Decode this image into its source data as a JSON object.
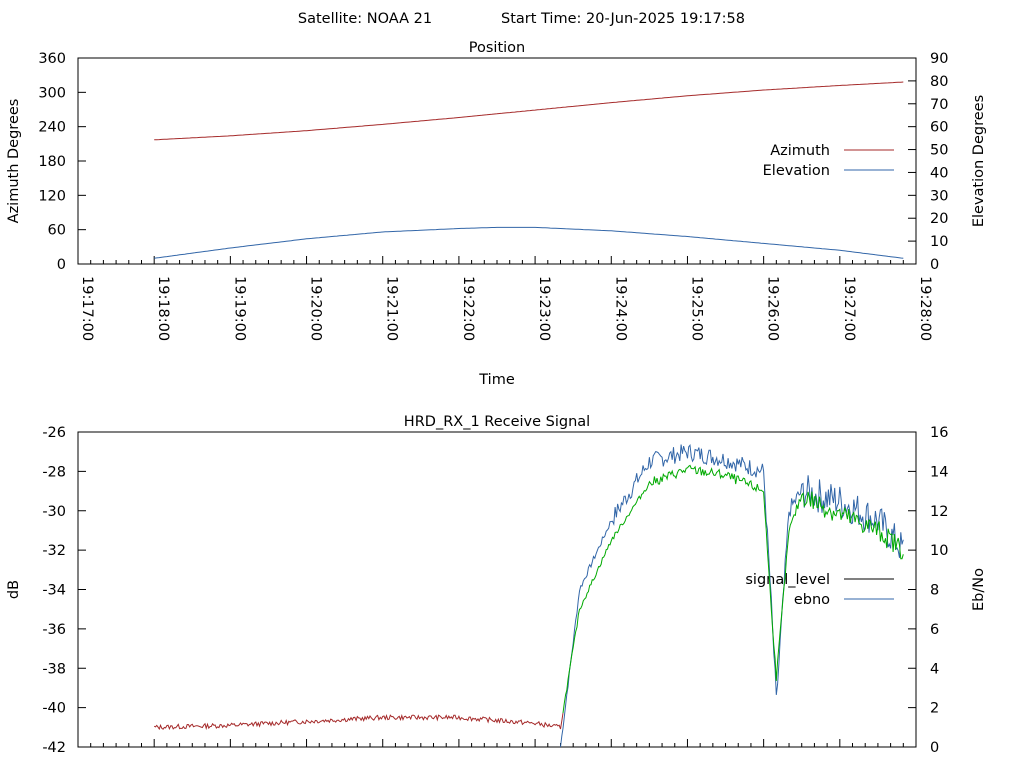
{
  "header": {
    "satellite_label": "Satellite: NOAA 21",
    "start_label": "Start Time: 20-Jun-2025 19:17:58"
  },
  "colors": {
    "azimuth": "#a52a2a",
    "elevation": "#3266a8",
    "signal_level_legend": "#000000",
    "signal_low": "#a52a2a",
    "signal_high": "#00aa00",
    "ebno": "#3266a8"
  },
  "chart_data": [
    {
      "type": "line",
      "title": "Position",
      "xlabel": "Time",
      "ylabel": "Azimuth Degrees",
      "y2label": "Elevation Degrees",
      "xlim": [
        "19:17:00",
        "19:28:00"
      ],
      "x_ticks": [
        "19:17:00",
        "19:18:00",
        "19:19:00",
        "19:20:00",
        "19:21:00",
        "19:22:00",
        "19:23:00",
        "19:24:00",
        "19:25:00",
        "19:26:00",
        "19:27:00",
        "19:28:00"
      ],
      "ylim": [
        0,
        360
      ],
      "y_ticks": [
        "0",
        "60",
        "120",
        "180",
        "240",
        "300",
        "360"
      ],
      "y2lim": [
        0,
        90
      ],
      "y2_ticks": [
        "0",
        "10",
        "20",
        "30",
        "40",
        "50",
        "60",
        "70",
        "80",
        "90"
      ],
      "legend_position": "right",
      "series": [
        {
          "name": "Azimuth",
          "axis": "y",
          "x": [
            "19:18:00",
            "19:19:00",
            "19:20:00",
            "19:21:00",
            "19:22:00",
            "19:23:00",
            "19:24:00",
            "19:25:00",
            "19:26:00",
            "19:27:00",
            "19:27:50"
          ],
          "values": [
            217,
            224,
            233,
            244,
            256,
            269,
            282,
            294,
            304,
            312,
            318
          ]
        },
        {
          "name": "Elevation",
          "axis": "y2",
          "x": [
            "19:18:00",
            "19:19:00",
            "19:20:00",
            "19:21:00",
            "19:22:00",
            "19:22:30",
            "19:23:00",
            "19:24:00",
            "19:25:00",
            "19:26:00",
            "19:27:00",
            "19:27:50"
          ],
          "values": [
            2.5,
            7,
            11,
            14,
            15.5,
            16,
            16,
            14.5,
            12,
            9,
            6,
            2.5
          ]
        }
      ]
    },
    {
      "type": "line",
      "title": "HRD_RX_1 Receive Signal",
      "ylabel": "dB",
      "y2label": "Eb/No",
      "xlim": [
        "19:17:00",
        "19:28:00"
      ],
      "ylim": [
        -42,
        -26
      ],
      "y_ticks": [
        "-26",
        "-28",
        "-30",
        "-32",
        "-34",
        "-36",
        "-38",
        "-40",
        "-42"
      ],
      "y2lim": [
        0,
        16
      ],
      "y2_ticks": [
        "0",
        "2",
        "4",
        "6",
        "8",
        "10",
        "12",
        "14",
        "16"
      ],
      "legend_position": "right",
      "series": [
        {
          "name": "signal_level",
          "axis": "y",
          "x": [
            "19:18:00",
            "19:19:00",
            "19:20:00",
            "19:21:00",
            "19:22:00",
            "19:23:00",
            "19:23:20",
            "19:23:35",
            "19:24:00",
            "19:24:30",
            "19:25:00",
            "19:25:30",
            "19:26:00",
            "19:26:05",
            "19:26:10",
            "19:26:20",
            "19:26:30",
            "19:27:00",
            "19:27:30",
            "19:27:50"
          ],
          "values": [
            -41.0,
            -40.9,
            -40.7,
            -40.5,
            -40.5,
            -40.8,
            -41.0,
            -35.0,
            -31.5,
            -28.6,
            -27.9,
            -28.2,
            -29.0,
            -34.0,
            -38.5,
            -31.0,
            -29.2,
            -30.2,
            -31.0,
            -32.0
          ]
        },
        {
          "name": "ebno",
          "axis": "y2",
          "x": [
            "19:23:20",
            "19:23:35",
            "19:24:00",
            "19:24:30",
            "19:25:00",
            "19:25:30",
            "19:26:00",
            "19:26:05",
            "19:26:10",
            "19:26:20",
            "19:26:30",
            "19:27:00",
            "19:27:30",
            "19:27:50"
          ],
          "values": [
            0,
            8.0,
            11.5,
            14.5,
            15.0,
            14.6,
            14.0,
            8.5,
            2.3,
            12.0,
            13.0,
            12.5,
            11.5,
            10.0
          ]
        }
      ]
    }
  ]
}
